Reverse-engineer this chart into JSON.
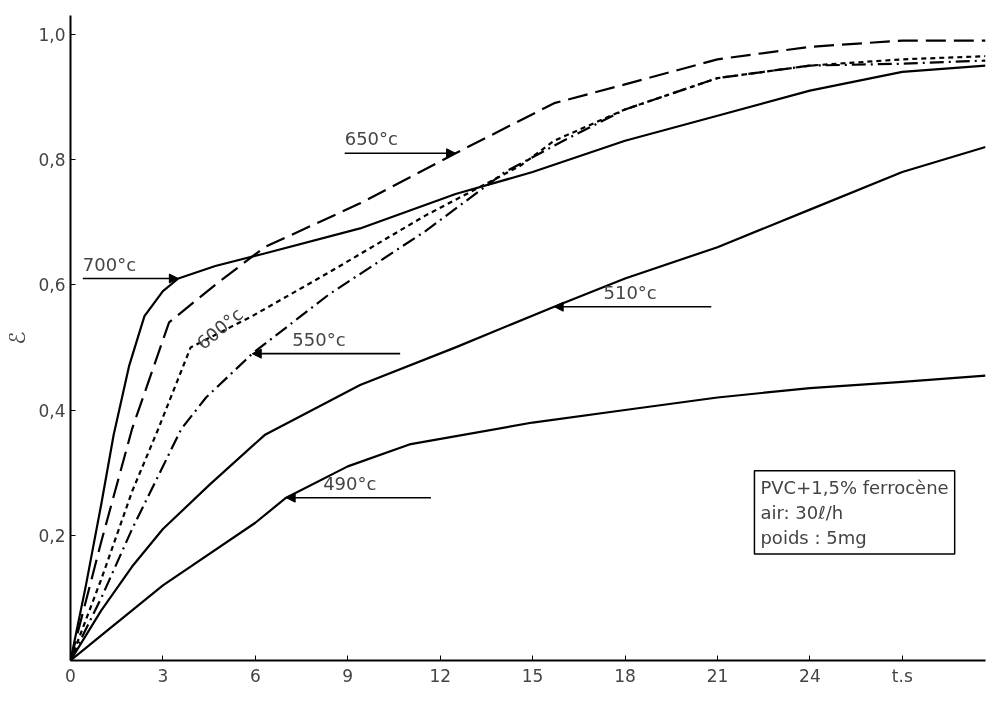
{
  "chart_data": {
    "type": "line",
    "ylabel": "ℰ",
    "xlim": [
      0,
      29.7
    ],
    "ylim": [
      0,
      1.03
    ],
    "xticks": [
      0,
      3,
      6,
      9,
      12,
      15,
      18,
      21,
      24,
      {
        "value": 27,
        "label": "t.s"
      }
    ],
    "yticks": [
      {
        "value": 0.2,
        "label": "0,2"
      },
      {
        "value": 0.4,
        "label": "0,4"
      },
      {
        "value": 0.6,
        "label": "0,6"
      },
      {
        "value": 0.8,
        "label": "0,8"
      },
      {
        "value": 1.0,
        "label": "1,0"
      }
    ],
    "grid": false,
    "marker": "none",
    "series": [
      {
        "color": "#000000",
        "line_style": "solid",
        "x": [
          0,
          0.5,
          1,
          1.4,
          1.9,
          2.4,
          3,
          3.5,
          4.7,
          6.3,
          9.4,
          12.5,
          15,
          18,
          21,
          24,
          27,
          29.7
        ],
        "values": [
          0,
          0.12,
          0.25,
          0.36,
          0.47,
          0.55,
          0.59,
          0.61,
          0.63,
          0.65,
          0.69,
          0.745,
          0.78,
          0.83,
          0.87,
          0.91,
          0.94,
          0.95
        ]
      },
      {
        "color": "#000000",
        "line_style": "dashed",
        "x": [
          0,
          1,
          2,
          3.2,
          4.7,
          6.3,
          9.4,
          12.5,
          15.7,
          18,
          21,
          24,
          27,
          29.7
        ],
        "values": [
          0,
          0.19,
          0.37,
          0.54,
          0.6,
          0.66,
          0.73,
          0.81,
          0.89,
          0.92,
          0.96,
          0.98,
          0.99,
          0.99
        ]
      },
      {
        "color": "#000000",
        "line_style": "dotted",
        "x": [
          0,
          1,
          2,
          2.85,
          3.9,
          5.9,
          8.4,
          11.5,
          14.6,
          15.7,
          18,
          21,
          24,
          27,
          29.7
        ],
        "values": [
          0,
          0.13,
          0.27,
          0.37,
          0.5,
          0.55,
          0.62,
          0.71,
          0.79,
          0.83,
          0.88,
          0.93,
          0.95,
          0.96,
          0.965
        ]
      },
      {
        "color": "#000000",
        "line_style": "dashdot",
        "x": [
          0,
          1,
          2,
          3.6,
          4.4,
          5.9,
          8.4,
          11.5,
          14.1,
          16,
          18,
          21,
          24,
          27,
          29.7
        ],
        "values": [
          0,
          0.1,
          0.21,
          0.37,
          0.42,
          0.49,
          0.585,
          0.685,
          0.78,
          0.83,
          0.88,
          0.93,
          0.95,
          0.953,
          0.958
        ]
      },
      {
        "color": "#000000",
        "line_style": "solid",
        "x": [
          0,
          1,
          2,
          3,
          4.5,
          6.3,
          9.4,
          12.5,
          15.7,
          18,
          21,
          24,
          27,
          29.7
        ],
        "values": [
          0,
          0.08,
          0.15,
          0.21,
          0.28,
          0.36,
          0.44,
          0.5,
          0.565,
          0.61,
          0.66,
          0.72,
          0.78,
          0.82
        ]
      },
      {
        "color": "#000000",
        "line_style": "solid",
        "x": [
          0,
          1,
          3,
          6,
          7,
          9,
          11,
          15,
          18,
          21,
          24,
          27,
          29.7
        ],
        "values": [
          0,
          0.04,
          0.12,
          0.22,
          0.26,
          0.31,
          0.345,
          0.38,
          0.4,
          0.42,
          0.435,
          0.445,
          0.455
        ]
      }
    ],
    "annotations": [
      {
        "text": "700°c",
        "x": 3.5,
        "y": 0.61
      },
      {
        "text": "650°c",
        "x": 12.5,
        "y": 0.81
      },
      {
        "text": "600°c",
        "x": 3.9,
        "y": 0.5
      },
      {
        "text": "550°c",
        "x": 5.9,
        "y": 0.49
      },
      {
        "text": "510°c",
        "x": 15.7,
        "y": 0.565
      },
      {
        "text": "490°c",
        "x": 7,
        "y": 0.26
      },
      "PVC+1,5% ferrocène\nair: 30ℓ/h\npoids : 5mg"
    ]
  }
}
